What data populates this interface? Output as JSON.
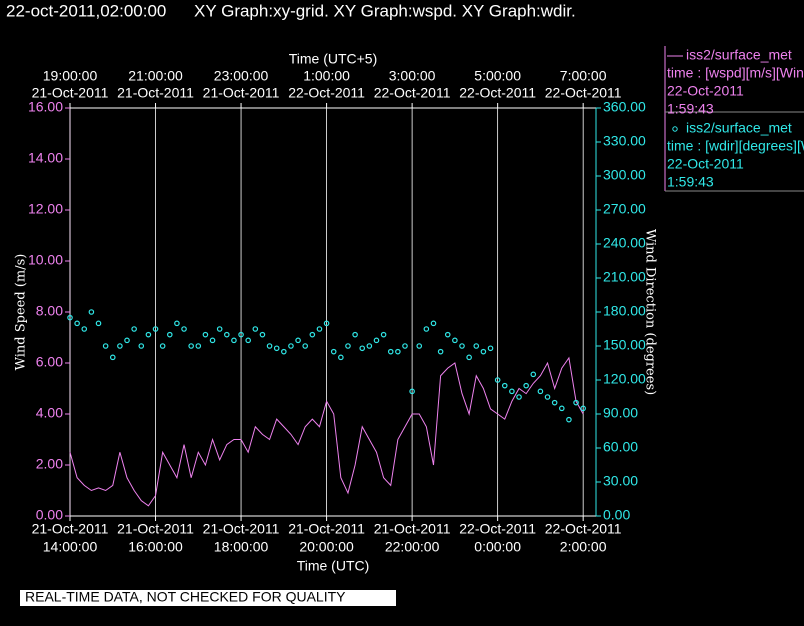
{
  "chart_data": {
    "type": "line",
    "title": "22-oct-2011,02:00:00",
    "subtitle": "XY Graph:xy-grid.  XY Graph:wspd.  XY Graph:wdir.",
    "x_label": "Time (UTC)",
    "x2_label": "Time (UTC+5)",
    "y_label": "Wind Speed (m/s)",
    "y2_label": "Wind Direction (degrees)",
    "footer": "REAL-TIME DATA, NOT CHECKED FOR QUALITY",
    "grid": "x",
    "xlim": [
      "2011-10-21T14:00Z",
      "2011-10-22T02:18Z"
    ],
    "xticks": [
      {
        "value": "2011-10-21T14:00Z",
        "label": [
          "21-Oct-2011",
          "14:00:00"
        ]
      },
      {
        "value": "2011-10-21T16:00Z",
        "label": [
          "21-Oct-2011",
          "16:00:00"
        ]
      },
      {
        "value": "2011-10-21T18:00Z",
        "label": [
          "21-Oct-2011",
          "18:00:00"
        ]
      },
      {
        "value": "2011-10-21T20:00Z",
        "label": [
          "21-Oct-2011",
          "20:00:00"
        ]
      },
      {
        "value": "2011-10-21T22:00Z",
        "label": [
          "21-Oct-2011",
          "22:00:00"
        ]
      },
      {
        "value": "2011-10-22T00:00Z",
        "label": [
          "22-Oct-2011",
          "0:00:00"
        ]
      },
      {
        "value": "2011-10-22T02:00Z",
        "label": [
          "22-Oct-2011",
          "2:00:00"
        ]
      }
    ],
    "x2ticks": [
      {
        "value": "2011-10-21T19:00+05:00",
        "label": [
          "19:00:00",
          "21-Oct-2011"
        ]
      },
      {
        "value": "2011-10-21T21:00+05:00",
        "label": [
          "21:00:00",
          "21-Oct-2011"
        ]
      },
      {
        "value": "2011-10-21T23:00+05:00",
        "label": [
          "23:00:00",
          "21-Oct-2011"
        ]
      },
      {
        "value": "2011-10-22T01:00+05:00",
        "label": [
          "1:00:00",
          "22-Oct-2011"
        ]
      },
      {
        "value": "2011-10-22T03:00+05:00",
        "label": [
          "3:00:00",
          "22-Oct-2011"
        ]
      },
      {
        "value": "2011-10-22T05:00+05:00",
        "label": [
          "5:00:00",
          "22-Oct-2011"
        ]
      },
      {
        "value": "2011-10-22T07:00+05:00",
        "label": [
          "7:00:00",
          "22-Oct-2011"
        ]
      }
    ],
    "ylim": [
      0,
      16
    ],
    "yticks": [
      {
        "value": 0,
        "label": "0.00"
      },
      {
        "value": 2,
        "label": "2.00"
      },
      {
        "value": 4,
        "label": "4.00"
      },
      {
        "value": 6,
        "label": "6.00"
      },
      {
        "value": 8,
        "label": "8.00"
      },
      {
        "value": 10,
        "label": "10.00"
      },
      {
        "value": 12,
        "label": "12.00"
      },
      {
        "value": 14,
        "label": "14.00"
      },
      {
        "value": 16,
        "label": "16.00"
      }
    ],
    "y2lim": [
      0,
      360
    ],
    "y2ticks": [
      {
        "value": 0,
        "label": "0.00"
      },
      {
        "value": 30,
        "label": "30.00"
      },
      {
        "value": 60,
        "label": "60.00"
      },
      {
        "value": 90,
        "label": "90.00"
      },
      {
        "value": 120,
        "label": "120.00"
      },
      {
        "value": 150,
        "label": "150.00"
      },
      {
        "value": 180,
        "label": "180.00"
      },
      {
        "value": 210,
        "label": "210.00"
      },
      {
        "value": 240,
        "label": "240.00"
      },
      {
        "value": 270,
        "label": "270.00"
      },
      {
        "value": 300,
        "label": "300.00"
      },
      {
        "value": 330,
        "label": "330.00"
      },
      {
        "value": 360,
        "label": "360.00"
      }
    ],
    "x": [
      "2011-10-21T14:00Z",
      "2011-10-21T14:10Z",
      "2011-10-21T14:20Z",
      "2011-10-21T14:30Z",
      "2011-10-21T14:40Z",
      "2011-10-21T14:50Z",
      "2011-10-21T15:00Z",
      "2011-10-21T15:10Z",
      "2011-10-21T15:20Z",
      "2011-10-21T15:30Z",
      "2011-10-21T15:40Z",
      "2011-10-21T15:50Z",
      "2011-10-21T16:00Z",
      "2011-10-21T16:10Z",
      "2011-10-21T16:20Z",
      "2011-10-21T16:30Z",
      "2011-10-21T16:40Z",
      "2011-10-21T16:50Z",
      "2011-10-21T17:00Z",
      "2011-10-21T17:10Z",
      "2011-10-21T17:20Z",
      "2011-10-21T17:30Z",
      "2011-10-21T17:40Z",
      "2011-10-21T17:50Z",
      "2011-10-21T18:00Z",
      "2011-10-21T18:10Z",
      "2011-10-21T18:20Z",
      "2011-10-21T18:30Z",
      "2011-10-21T18:40Z",
      "2011-10-21T18:50Z",
      "2011-10-21T19:00Z",
      "2011-10-21T19:10Z",
      "2011-10-21T19:20Z",
      "2011-10-21T19:30Z",
      "2011-10-21T19:40Z",
      "2011-10-21T19:50Z",
      "2011-10-21T20:00Z",
      "2011-10-21T20:10Z",
      "2011-10-21T20:20Z",
      "2011-10-21T20:30Z",
      "2011-10-21T20:40Z",
      "2011-10-21T20:50Z",
      "2011-10-21T21:00Z",
      "2011-10-21T21:10Z",
      "2011-10-21T21:20Z",
      "2011-10-21T21:30Z",
      "2011-10-21T21:40Z",
      "2011-10-21T21:50Z",
      "2011-10-21T22:00Z",
      "2011-10-21T22:10Z",
      "2011-10-21T22:20Z",
      "2011-10-21T22:30Z",
      "2011-10-21T22:40Z",
      "2011-10-21T22:50Z",
      "2011-10-21T23:00Z",
      "2011-10-21T23:10Z",
      "2011-10-21T23:20Z",
      "2011-10-21T23:30Z",
      "2011-10-21T23:40Z",
      "2011-10-21T23:50Z",
      "2011-10-22T00:00Z",
      "2011-10-22T00:10Z",
      "2011-10-22T00:20Z",
      "2011-10-22T00:30Z",
      "2011-10-22T00:40Z",
      "2011-10-22T00:50Z",
      "2011-10-22T01:00Z",
      "2011-10-22T01:10Z",
      "2011-10-22T01:20Z",
      "2011-10-22T01:30Z",
      "2011-10-22T01:40Z",
      "2011-10-22T01:50Z",
      "2011-10-22T02:00Z"
    ],
    "series": [
      {
        "name": "iss2/surface_met",
        "legend_text": "time : [wspd][m/s][Wind",
        "date": "22-Oct-2011",
        "time": "1:59:43",
        "color": "#ee82ee",
        "marker": "line",
        "axis": "y",
        "values": [
          2.5,
          1.5,
          1.2,
          1.0,
          1.1,
          1.0,
          1.2,
          2.5,
          1.5,
          1.0,
          0.6,
          0.4,
          0.8,
          2.5,
          2.0,
          1.5,
          2.8,
          1.5,
          2.5,
          2.0,
          3.0,
          2.2,
          2.8,
          3.0,
          3.0,
          2.5,
          3.5,
          3.2,
          3.0,
          3.8,
          3.5,
          3.2,
          2.8,
          3.5,
          3.8,
          3.5,
          4.5,
          4.0,
          1.5,
          0.9,
          2.0,
          3.5,
          3.0,
          2.5,
          1.5,
          1.2,
          3.0,
          3.5,
          4.0,
          4.0,
          3.5,
          2.0,
          5.5,
          5.8,
          6.0,
          4.8,
          4.0,
          5.5,
          5.0,
          4.2,
          4.0,
          3.8,
          4.5,
          5.0,
          4.8,
          5.2,
          5.5,
          6.0,
          5.0,
          5.8,
          6.2,
          4.5,
          4.0
        ]
      },
      {
        "name": "iss2/surface_met",
        "legend_text": "time : [wdir][degrees][W",
        "date": "22-Oct-2011",
        "time": "1:59:43",
        "color": "#30e8e8",
        "marker": "circle",
        "axis": "y2",
        "values": [
          175,
          170,
          165,
          180,
          170,
          150,
          140,
          150,
          155,
          165,
          150,
          160,
          165,
          150,
          160,
          170,
          165,
          150,
          150,
          160,
          155,
          165,
          160,
          155,
          160,
          155,
          165,
          160,
          150,
          148,
          145,
          150,
          155,
          150,
          160,
          165,
          170,
          145,
          140,
          150,
          160,
          148,
          150,
          155,
          160,
          145,
          145,
          150,
          110,
          150,
          165,
          170,
          145,
          160,
          155,
          150,
          140,
          150,
          145,
          148,
          120,
          115,
          110,
          105,
          115,
          125,
          110,
          105,
          100,
          95,
          85,
          100,
          95
        ]
      }
    ]
  }
}
